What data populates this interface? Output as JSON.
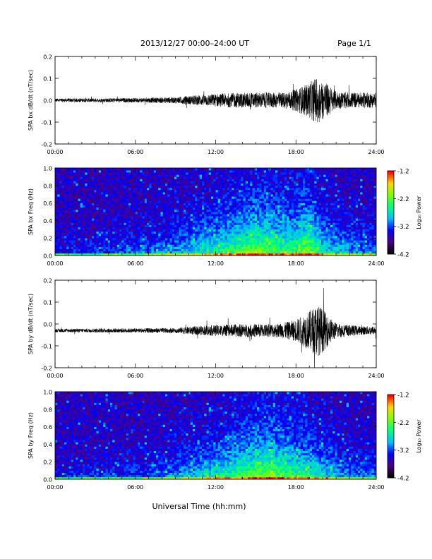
{
  "header": {
    "title": "2013/12/27  00:00–24:00 UT",
    "page": "Page 1/1"
  },
  "xlabel": "Universal Time (hh:mm)",
  "colorbar": {
    "ticks": [
      "-1.2",
      "-2.2",
      "-3.2",
      "-4.2"
    ],
    "label": "Log₁₀ Power",
    "colors": [
      "#000000",
      "#4b0082",
      "#0000ff",
      "#00bfff",
      "#00ff7f",
      "#7fff00",
      "#ffd700",
      "#ff0000"
    ]
  },
  "chart_data": [
    {
      "type": "line",
      "ylabel": "SPA bx dB/dt (nT/sec)",
      "xlim": [
        0,
        24
      ],
      "ylim": [
        -0.2,
        0.2
      ],
      "xticks": [
        "00:00",
        "06:00",
        "12:00",
        "18:00",
        "24:00"
      ],
      "yticks": [
        "0.2",
        "0.1",
        "0.0",
        "-0.1",
        "-0.2"
      ],
      "envelope": {
        "hours": [
          0,
          3,
          6,
          9,
          10,
          12,
          14,
          16,
          17,
          18,
          19,
          19.6,
          20,
          20.5,
          21,
          22,
          23,
          24
        ],
        "amplitude": [
          0.008,
          0.009,
          0.01,
          0.014,
          0.02,
          0.03,
          0.035,
          0.035,
          0.035,
          0.05,
          0.08,
          0.11,
          0.09,
          0.07,
          0.04,
          0.035,
          0.035,
          0.035
        ]
      },
      "color": "#000000"
    },
    {
      "type": "heatmap",
      "ylabel": "SPA bx Freq (Hz)",
      "xlim": [
        0,
        24
      ],
      "ylim": [
        0,
        1
      ],
      "xticks": [
        "00:00",
        "06:00",
        "12:00",
        "18:00",
        "24:00"
      ],
      "yticks": [
        "1.0",
        "0.8",
        "0.6",
        "0.4",
        "0.2",
        "0.0"
      ],
      "zlim": [
        -4.2,
        -1.2
      ],
      "activity": {
        "hours": [
          0,
          4,
          8,
          10,
          12,
          14,
          15,
          16,
          17,
          18,
          19,
          20,
          22,
          24
        ],
        "strength": [
          0.15,
          0.2,
          0.35,
          0.5,
          0.65,
          0.8,
          0.9,
          0.85,
          0.75,
          0.8,
          0.95,
          0.6,
          0.4,
          0.35
        ]
      }
    },
    {
      "type": "line",
      "ylabel": "SPA by dB/dt (nT/sec)",
      "xlim": [
        0,
        24
      ],
      "ylim": [
        -0.2,
        0.2
      ],
      "xticks": [
        "00:00",
        "06:00",
        "12:00",
        "18:00",
        "24:00"
      ],
      "yticks": [
        "0.2",
        "0.1",
        "0.0",
        "-0.1",
        "-0.2"
      ],
      "offset": -0.03,
      "envelope": {
        "hours": [
          0,
          3,
          6,
          9,
          10,
          12,
          14,
          16,
          17,
          18,
          19,
          19.6,
          20,
          20.5,
          21,
          22,
          23,
          24
        ],
        "amplitude": [
          0.008,
          0.009,
          0.01,
          0.012,
          0.018,
          0.025,
          0.03,
          0.03,
          0.035,
          0.05,
          0.09,
          0.12,
          0.1,
          0.06,
          0.035,
          0.025,
          0.02,
          0.02
        ]
      },
      "color": "#000000"
    },
    {
      "type": "heatmap",
      "ylabel": "SPA by Freq (Hz)",
      "xlim": [
        0,
        24
      ],
      "ylim": [
        0,
        1
      ],
      "xticks": [
        "00:00",
        "06:00",
        "12:00",
        "18:00",
        "24:00"
      ],
      "yticks": [
        "1.0",
        "0.8",
        "0.6",
        "0.4",
        "0.2",
        "0.0"
      ],
      "zlim": [
        -4.2,
        -1.2
      ],
      "activity": {
        "hours": [
          0,
          4,
          8,
          10,
          12,
          14,
          15,
          16,
          17,
          18,
          19,
          20,
          22,
          24
        ],
        "strength": [
          0.12,
          0.18,
          0.3,
          0.45,
          0.6,
          0.75,
          0.85,
          0.9,
          0.8,
          0.75,
          0.7,
          0.55,
          0.35,
          0.3
        ]
      }
    }
  ]
}
